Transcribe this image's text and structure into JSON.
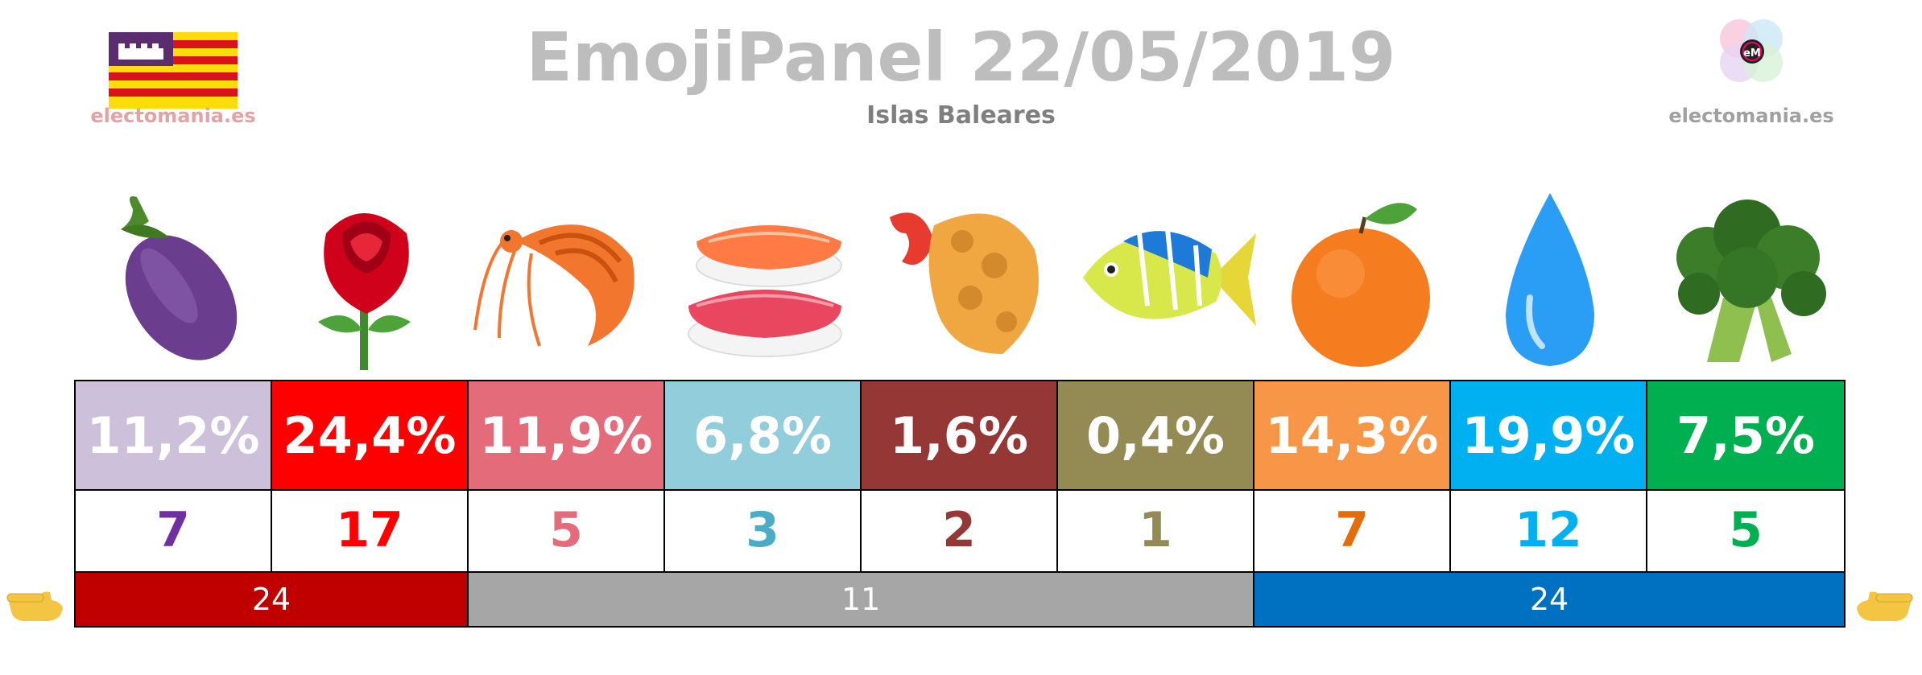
{
  "header": {
    "title": "EmojiPanel 22/05/2019",
    "subtitle": "Islas Baleares"
  },
  "branding": {
    "left": "electomania.es",
    "right": "electomania.es"
  },
  "parties": [
    {
      "icon": "eggplant-icon",
      "pct": "11,2%",
      "seats": "7",
      "bg": "#ccc0da",
      "fg": "#7030a0"
    },
    {
      "icon": "rose-icon",
      "pct": "24,4%",
      "seats": "17",
      "bg": "#ff0000",
      "fg": "#ff0000"
    },
    {
      "icon": "shrimp-icon",
      "pct": "11,9%",
      "seats": "5",
      "bg": "#e46c7a",
      "fg": "#e46c7a"
    },
    {
      "icon": "sushi-icon",
      "pct": "6,8%",
      "seats": "3",
      "bg": "#92cddc",
      "fg": "#4bacc6"
    },
    {
      "icon": "fried-shrimp-icon",
      "pct": "1,6%",
      "seats": "2",
      "bg": "#953735",
      "fg": "#953735"
    },
    {
      "icon": "tropical-fish-icon",
      "pct": "0,4%",
      "seats": "1",
      "bg": "#948a54",
      "fg": "#948a54"
    },
    {
      "icon": "orange-icon",
      "pct": "14,3%",
      "seats": "7",
      "bg": "#f79646",
      "fg": "#e46c0a"
    },
    {
      "icon": "droplet-icon",
      "pct": "19,9%",
      "seats": "12",
      "bg": "#00b0f0",
      "fg": "#00b0f0"
    },
    {
      "icon": "broccoli-icon",
      "pct": "7,5%",
      "seats": "5",
      "bg": "#00b050",
      "fg": "#00b050"
    }
  ],
  "blocs": [
    {
      "label": "24",
      "span": 2,
      "bg": "#c00000"
    },
    {
      "label": "11",
      "span": 4,
      "bg": "#a6a6a6"
    },
    {
      "label": "24",
      "span": 3,
      "bg": "#0070c0"
    }
  ]
}
